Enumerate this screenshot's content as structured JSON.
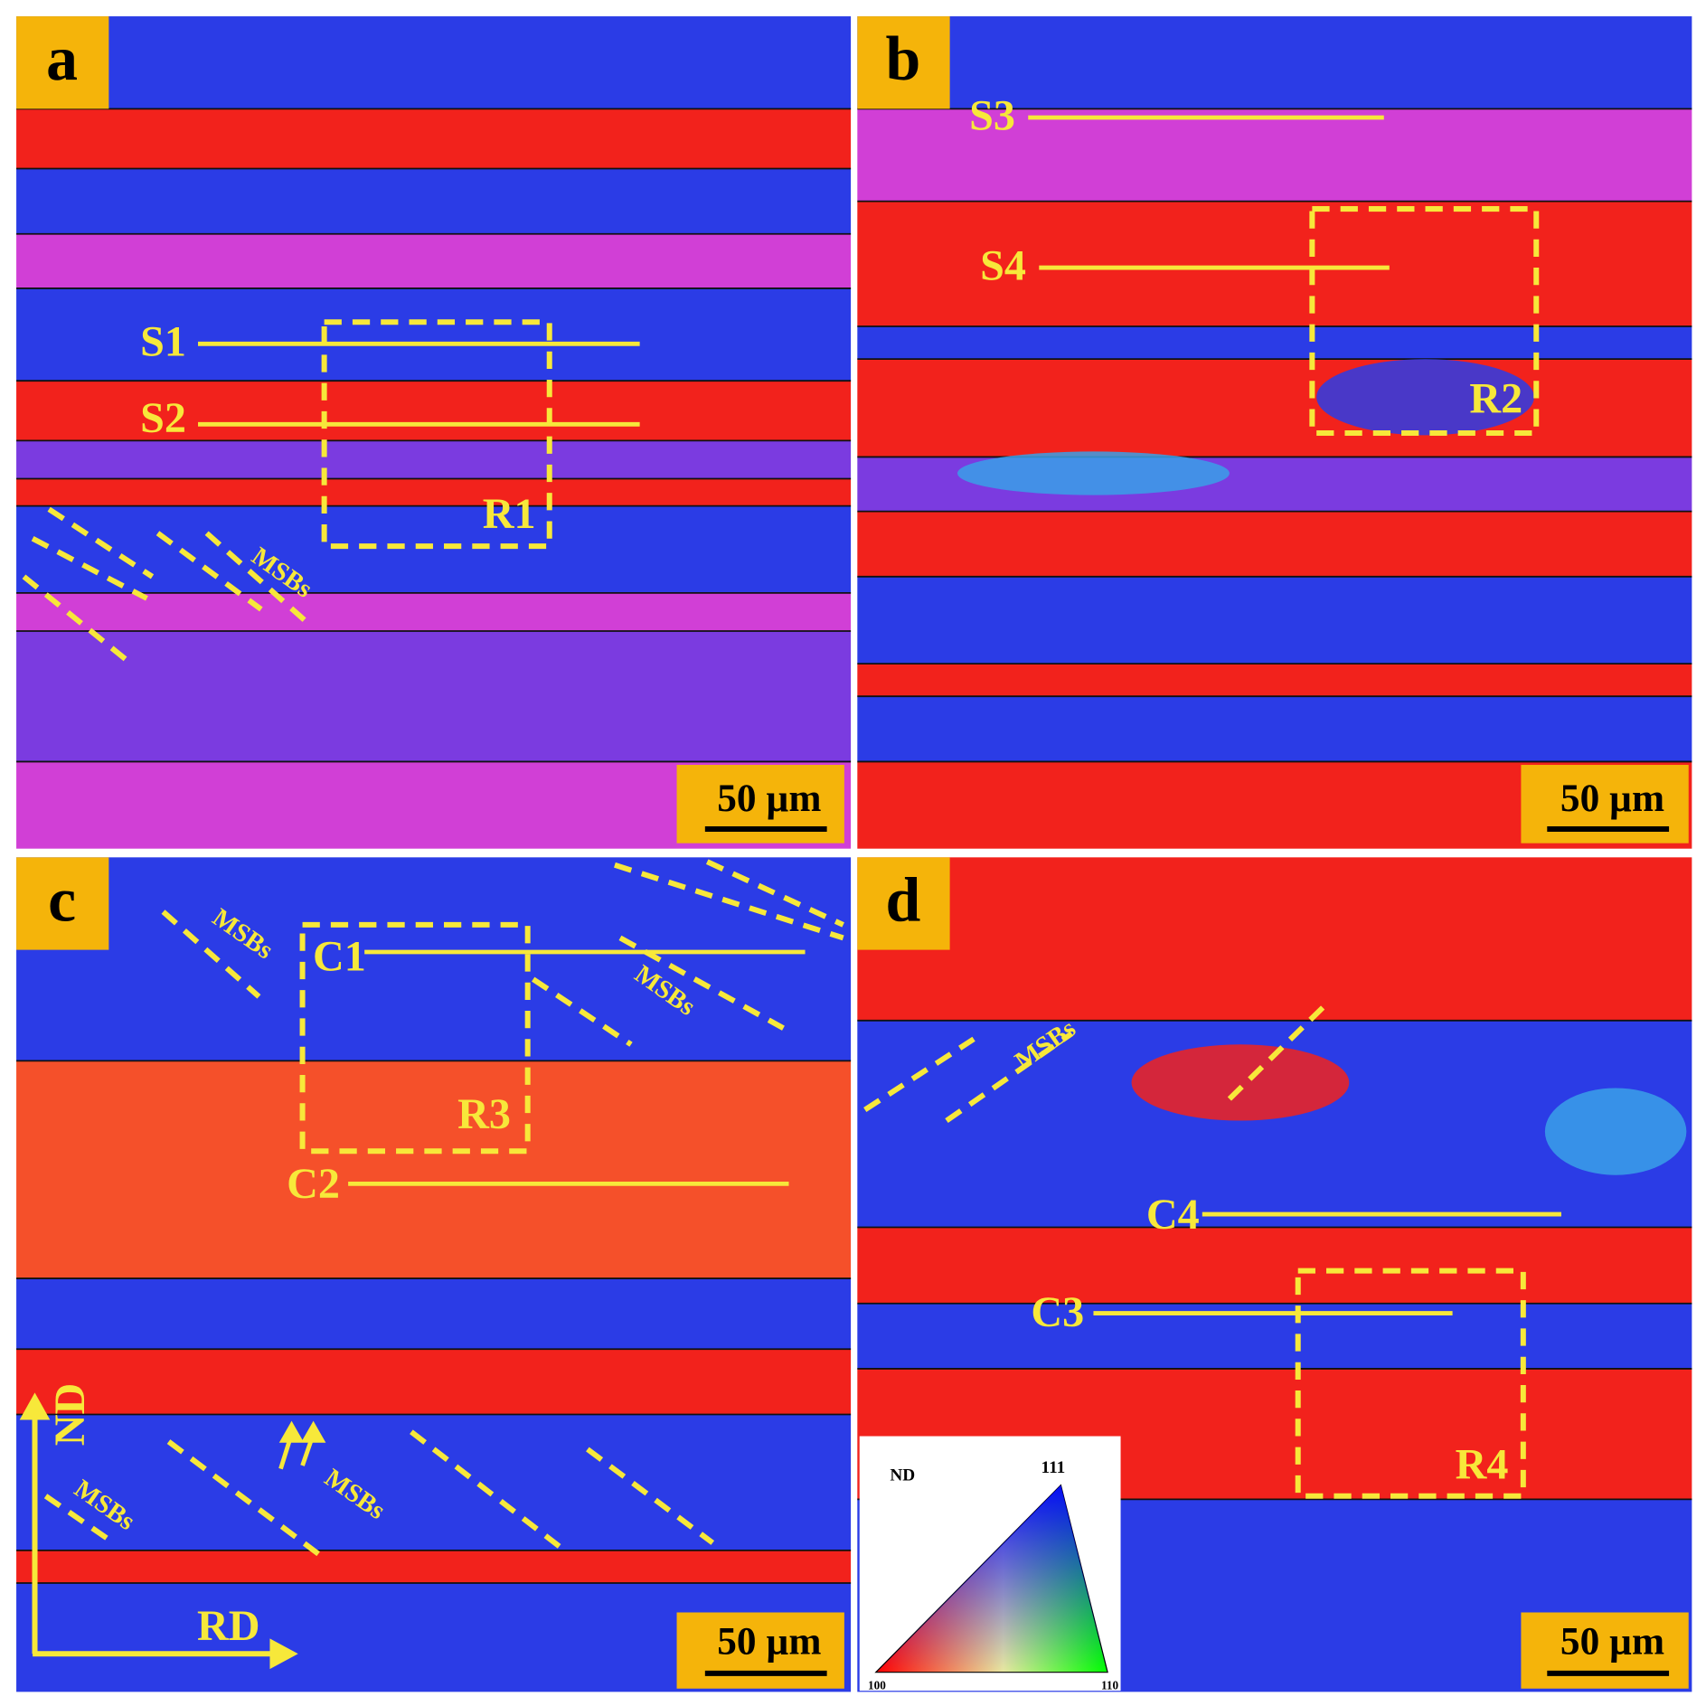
{
  "panels": [
    {
      "label": "a",
      "lines": [
        "S1",
        "S2"
      ],
      "region": "R1",
      "annotations": [
        "MSBs"
      ],
      "scale_bar": "50 µm"
    },
    {
      "label": "b",
      "lines": [
        "S3",
        "S4"
      ],
      "region": "R2",
      "scale_bar": "50 µm"
    },
    {
      "label": "c",
      "lines": [
        "C1",
        "C2"
      ],
      "region": "R3",
      "annotations": [
        "MSBs",
        "MSBs",
        "MSBs",
        "MSBs"
      ],
      "scale_bar": "50 µm"
    },
    {
      "label": "d",
      "lines": [
        "C4",
        "C3"
      ],
      "region": "R4",
      "annotations": [
        "MSBs"
      ],
      "scale_bar": "50 µm"
    }
  ],
  "axes": {
    "vertical": "ND",
    "horizontal": "RD"
  },
  "ipf_legend": {
    "title": "ND",
    "corners": [
      "111",
      "100",
      "110"
    ]
  }
}
